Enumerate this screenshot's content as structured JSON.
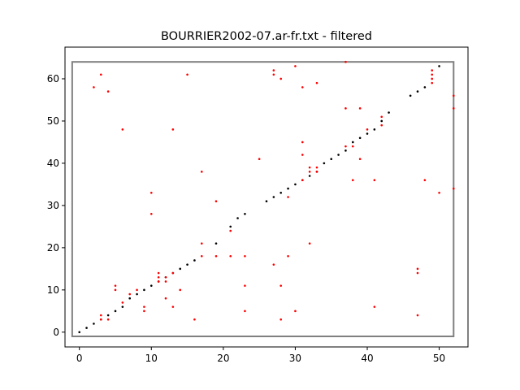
{
  "chart_data": {
    "type": "scatter",
    "title": "BOURRIER2002-07.ar-fr.txt - filtered",
    "xlabel": "",
    "ylabel": "",
    "xlim": [
      -2.0,
      54.0
    ],
    "ylim": [
      -3.5,
      67.5
    ],
    "xticks": [
      0,
      10,
      20,
      30,
      40,
      50
    ],
    "yticks": [
      0,
      10,
      20,
      30,
      40,
      50,
      60
    ],
    "grid": false,
    "box": {
      "x0": -1,
      "x1": 52,
      "y0": -1,
      "y1": 64,
      "color": "#808080"
    },
    "series": [
      {
        "color": "#000000",
        "points": [
          [
            0,
            0
          ],
          [
            1,
            1
          ],
          [
            2,
            2
          ],
          [
            3,
            3
          ],
          [
            4,
            4
          ],
          [
            5,
            5
          ],
          [
            6,
            6
          ],
          [
            7,
            8
          ],
          [
            8,
            9
          ],
          [
            9,
            10
          ],
          [
            10,
            11
          ],
          [
            11,
            12
          ],
          [
            12,
            13
          ],
          [
            13,
            14
          ],
          [
            14,
            15
          ],
          [
            15,
            16
          ],
          [
            16,
            17
          ],
          [
            19,
            21
          ],
          [
            21,
            25
          ],
          [
            22,
            27
          ],
          [
            23,
            28
          ],
          [
            26,
            31
          ],
          [
            27,
            32
          ],
          [
            28,
            33
          ],
          [
            29,
            34
          ],
          [
            30,
            35
          ],
          [
            31,
            36
          ],
          [
            32,
            37
          ],
          [
            33,
            38
          ],
          [
            34,
            40
          ],
          [
            35,
            41
          ],
          [
            36,
            42
          ],
          [
            37,
            43
          ],
          [
            38,
            45
          ],
          [
            39,
            46
          ],
          [
            40,
            47
          ],
          [
            41,
            48
          ],
          [
            42,
            50
          ],
          [
            43,
            52
          ],
          [
            46,
            56
          ],
          [
            47,
            57
          ],
          [
            48,
            58
          ],
          [
            50,
            63
          ]
        ]
      },
      {
        "color": "#ff0000",
        "points": [
          [
            2,
            58
          ],
          [
            3,
            61
          ],
          [
            4,
            57
          ],
          [
            6,
            48
          ],
          [
            13,
            48
          ],
          [
            15,
            61
          ],
          [
            10,
            33
          ],
          [
            10,
            28
          ],
          [
            17,
            38
          ],
          [
            19,
            31
          ],
          [
            25,
            41
          ],
          [
            27,
            61
          ],
          [
            27,
            62
          ],
          [
            28,
            60
          ],
          [
            30,
            63
          ],
          [
            31,
            58
          ],
          [
            33,
            59
          ],
          [
            37,
            53
          ],
          [
            37,
            64
          ],
          [
            39,
            53
          ],
          [
            31,
            45
          ],
          [
            31,
            42
          ],
          [
            32,
            39
          ],
          [
            32,
            38
          ],
          [
            33,
            39
          ],
          [
            33,
            38
          ],
          [
            29,
            32
          ],
          [
            31,
            36
          ],
          [
            38,
            36
          ],
          [
            39,
            41
          ],
          [
            41,
            36
          ],
          [
            37,
            44
          ],
          [
            38,
            44
          ],
          [
            40,
            48
          ],
          [
            42,
            49
          ],
          [
            42,
            51
          ],
          [
            48,
            36
          ],
          [
            49,
            59
          ],
          [
            49,
            60
          ],
          [
            49,
            61
          ],
          [
            49,
            62
          ],
          [
            50,
            33
          ],
          [
            52,
            56
          ],
          [
            52,
            53
          ],
          [
            52,
            34
          ],
          [
            3,
            3
          ],
          [
            3,
            4
          ],
          [
            4,
            3
          ],
          [
            5,
            10
          ],
          [
            5,
            11
          ],
          [
            6,
            7
          ],
          [
            7,
            9
          ],
          [
            8,
            10
          ],
          [
            9,
            5
          ],
          [
            9,
            6
          ],
          [
            11,
            12
          ],
          [
            11,
            13
          ],
          [
            11,
            14
          ],
          [
            12,
            8
          ],
          [
            12,
            12
          ],
          [
            12,
            13
          ],
          [
            13,
            6
          ],
          [
            13,
            14
          ],
          [
            14,
            10
          ],
          [
            16,
            3
          ],
          [
            17,
            18
          ],
          [
            17,
            21
          ],
          [
            19,
            18
          ],
          [
            21,
            18
          ],
          [
            21,
            24
          ],
          [
            23,
            5
          ],
          [
            23,
            11
          ],
          [
            23,
            18
          ],
          [
            27,
            16
          ],
          [
            28,
            11
          ],
          [
            28,
            3
          ],
          [
            29,
            18
          ],
          [
            30,
            5
          ],
          [
            32,
            21
          ],
          [
            41,
            6
          ],
          [
            47,
            4
          ],
          [
            47,
            14
          ],
          [
            47,
            15
          ]
        ]
      }
    ]
  }
}
